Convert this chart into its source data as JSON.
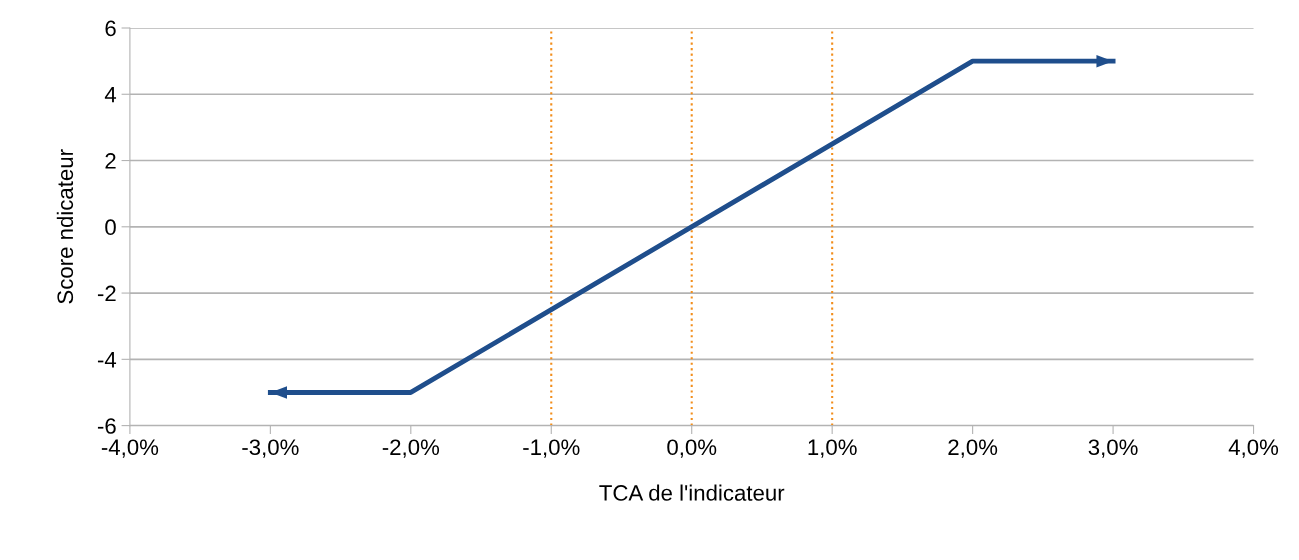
{
  "chart_data": {
    "type": "line",
    "xlabel": "TCA de l'indicateur",
    "ylabel": "Score ndicateur",
    "series": [
      {
        "color": "#1f4e8c",
        "x": [
          -3,
          -2,
          2,
          3
        ],
        "values": [
          -5,
          -5,
          5,
          5
        ]
      }
    ],
    "xlim": [
      -4,
      4
    ],
    "xticks": [
      {
        "value": -4,
        "label": "-4,0%"
      },
      {
        "value": -3,
        "label": "-3,0%"
      },
      {
        "value": -2,
        "label": "-2,0%"
      },
      {
        "value": -1,
        "label": "-1,0%"
      },
      {
        "value": 0,
        "label": "0,0%"
      },
      {
        "value": 1,
        "label": "1,0%"
      },
      {
        "value": 2,
        "label": "2,0%"
      },
      {
        "value": 3,
        "label": "3,0%"
      },
      {
        "value": 4,
        "label": "4,0%"
      }
    ],
    "ylim": [
      -6,
      6
    ],
    "yticks": [
      -6,
      -4,
      -2,
      0,
      2,
      4,
      6
    ],
    "grid": "y",
    "marker": "none",
    "line_style": "solid",
    "legend": false,
    "ref_lines": [
      {
        "axis": "x",
        "value": -1,
        "color": "#f28e1c",
        "line_style": "dotted"
      },
      {
        "axis": "x",
        "value": 0,
        "color": "#f28e1c",
        "line_style": "dotted"
      },
      {
        "axis": "x",
        "value": 1,
        "color": "#f28e1c",
        "line_style": "dotted"
      }
    ]
  }
}
